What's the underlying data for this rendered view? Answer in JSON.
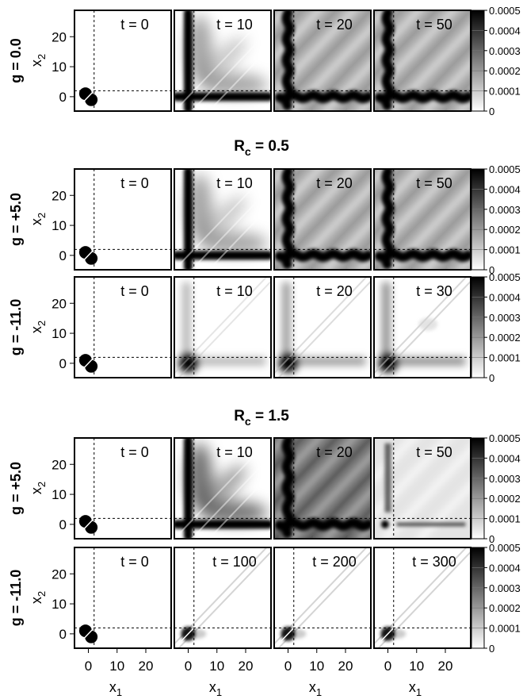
{
  "chart_data": {
    "type": "heatmap",
    "x_axis": {
      "label": "x",
      "subscript": "1",
      "ticks": [
        0,
        10,
        20
      ],
      "range": [
        -4,
        28
      ]
    },
    "y_axis": {
      "label": "x",
      "subscript": "2",
      "ticks": [
        0,
        10,
        20
      ],
      "range": [
        -4,
        28
      ]
    },
    "reference_lines": {
      "x": 2,
      "y": 2,
      "style": "dotted"
    },
    "colorbar": {
      "range": [
        0,
        0.0005
      ],
      "ticks": [
        "0.0005",
        "0.0004",
        "0.0003",
        "0.0002",
        "0.0001",
        "0"
      ]
    },
    "sections": [
      {
        "title_main": "",
        "title_sub": ""
      },
      {
        "title_main": "R",
        "title_sub": "c",
        "title_suffix": " = 0.5"
      },
      {
        "title_main": "R",
        "title_sub": "c",
        "title_suffix": " = 1.5"
      }
    ],
    "rows": [
      {
        "label": "g = 0.0",
        "section": 0,
        "panels": [
          "t = 0",
          "t = 10",
          "t = 20",
          "t = 50"
        ],
        "pattern": [
          "init",
          "spread",
          "full",
          "full"
        ]
      },
      {
        "label": "g = +5.0",
        "section": 1,
        "panels": [
          "t = 0",
          "t = 10",
          "t = 20",
          "t = 50"
        ],
        "pattern": [
          "init",
          "spread",
          "full",
          "full"
        ]
      },
      {
        "label": "g = -11.0",
        "section": 1,
        "panels": [
          "t = 0",
          "t = 10",
          "t = 20",
          "t = 30"
        ],
        "pattern": [
          "init",
          "attract_early",
          "attract_mid",
          "attract_late"
        ]
      },
      {
        "label": "g = +5.0",
        "section": 2,
        "panels": [
          "t = 0",
          "t = 10",
          "t = 20",
          "t = 50"
        ],
        "pattern": [
          "init",
          "spread_dark",
          "full_dark",
          "fading"
        ]
      },
      {
        "label": "g = -11.0",
        "section": 2,
        "panels": [
          "t = 0",
          "t = 100",
          "t = 200",
          "t = 300"
        ],
        "pattern": [
          "init",
          "bound",
          "bound",
          "bound"
        ]
      }
    ]
  },
  "colors": {
    "ink": "#000000",
    "background": "#ffffff",
    "low": "#ffffff",
    "high": "#000000"
  }
}
